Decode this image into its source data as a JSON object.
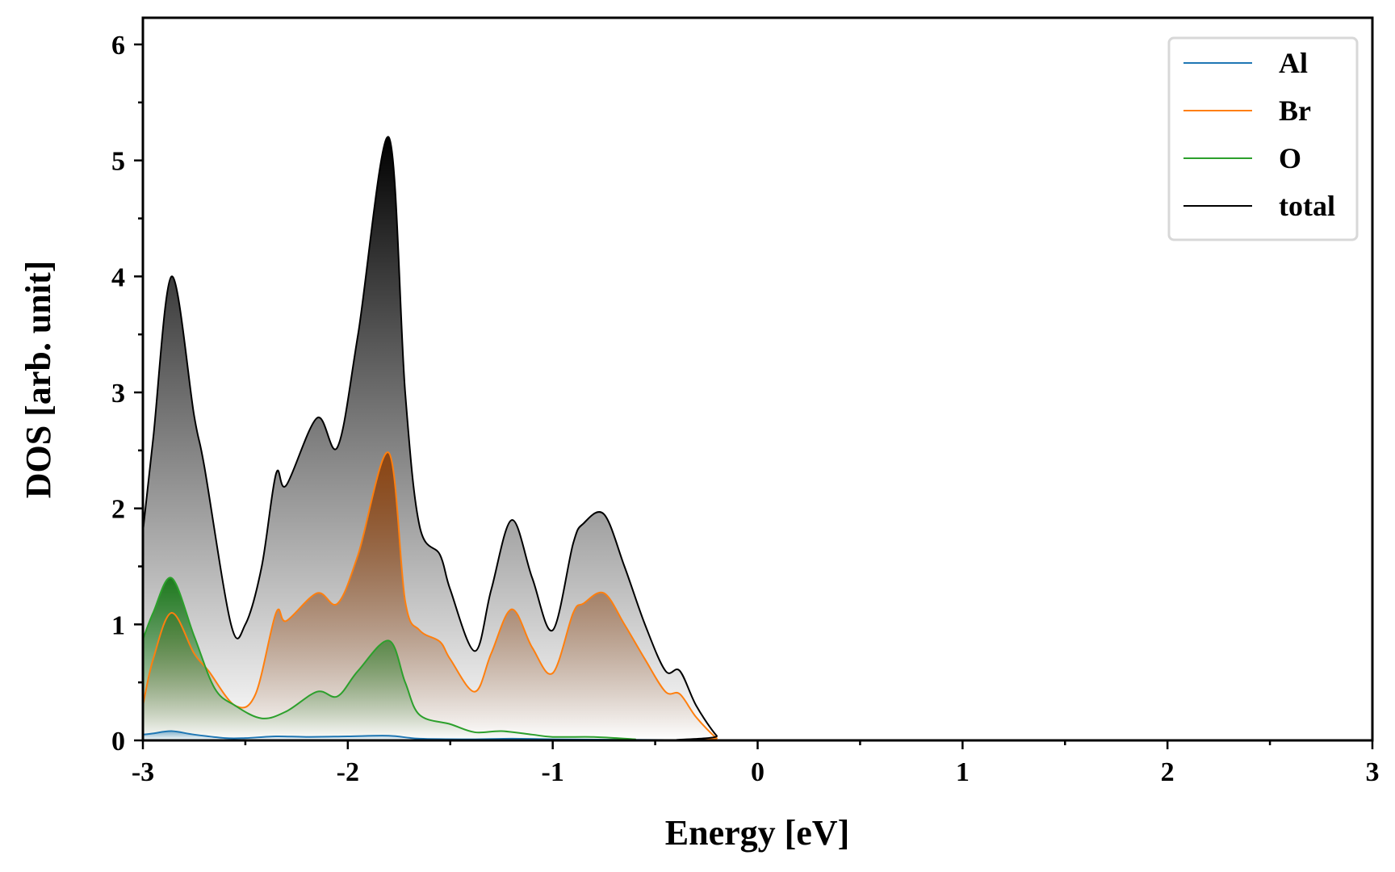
{
  "chart_data": {
    "type": "area",
    "title": "",
    "xlabel": "Energy [eV]",
    "ylabel": "DOS [arb. unit]",
    "xlim": [
      -3,
      3
    ],
    "ylim": [
      0,
      6.23
    ],
    "xticks": [
      -3,
      -2,
      -1,
      0,
      1,
      2,
      3
    ],
    "yticks": [
      0,
      1,
      2,
      3,
      4,
      5,
      6
    ],
    "grid": false,
    "legend_position": "top-right",
    "series": [
      {
        "name": "Al",
        "color": "#1f77b4",
        "fill": "#1f77b4",
        "x": [
          -3,
          -2.95,
          -2.86,
          -2.75,
          -2.6,
          -2.5,
          -2.35,
          -2.2,
          -2.0,
          -1.8,
          -1.65,
          -1.4,
          -1.2,
          -1.0,
          -0.6,
          -0.3,
          -0.15,
          3
        ],
        "y": [
          0.05,
          0.06,
          0.08,
          0.05,
          0.02,
          0.02,
          0.035,
          0.03,
          0.035,
          0.04,
          0.015,
          0.01,
          0.015,
          0.01,
          0.005,
          0.002,
          0,
          0
        ]
      },
      {
        "name": "Br",
        "color": "#ff7f0e",
        "fill": "#8b4513",
        "x": [
          -3,
          -2.95,
          -2.86,
          -2.75,
          -2.68,
          -2.55,
          -2.45,
          -2.35,
          -2.3,
          -2.15,
          -2.05,
          -1.95,
          -1.8,
          -1.72,
          -1.65,
          -1.55,
          -1.5,
          -1.38,
          -1.3,
          -1.2,
          -1.1,
          -1.0,
          -0.9,
          -0.85,
          -0.75,
          -0.65,
          -0.55,
          -0.45,
          -0.38,
          -0.3,
          -0.2,
          -0.15,
          3
        ],
        "y": [
          0.3,
          0.7,
          1.1,
          0.75,
          0.6,
          0.3,
          0.4,
          1.1,
          1.03,
          1.27,
          1.18,
          1.6,
          2.48,
          1.2,
          0.95,
          0.85,
          0.7,
          0.42,
          0.75,
          1.13,
          0.8,
          0.58,
          1.1,
          1.18,
          1.27,
          1.0,
          0.7,
          0.42,
          0.4,
          0.2,
          0.02,
          0,
          0
        ]
      },
      {
        "name": "O",
        "color": "#2ca02c",
        "fill": "#1e7a1e",
        "x": [
          -3,
          -2.95,
          -2.86,
          -2.75,
          -2.65,
          -2.55,
          -2.42,
          -2.3,
          -2.15,
          -2.05,
          -1.95,
          -1.8,
          -1.72,
          -1.65,
          -1.5,
          -1.38,
          -1.25,
          -1.1,
          -1.0,
          -0.8,
          -0.6,
          -0.5,
          3
        ],
        "y": [
          0.87,
          1.1,
          1.4,
          0.9,
          0.45,
          0.3,
          0.19,
          0.25,
          0.42,
          0.38,
          0.6,
          0.86,
          0.5,
          0.22,
          0.14,
          0.07,
          0.08,
          0.05,
          0.03,
          0.03,
          0.01,
          0,
          0
        ]
      },
      {
        "name": "total",
        "color": "#000000",
        "fill": "#000000",
        "x": [
          -3,
          -2.95,
          -2.86,
          -2.75,
          -2.7,
          -2.57,
          -2.5,
          -2.42,
          -2.35,
          -2.3,
          -2.15,
          -2.05,
          -1.95,
          -1.8,
          -1.72,
          -1.65,
          -1.55,
          -1.5,
          -1.38,
          -1.3,
          -1.2,
          -1.1,
          -1.0,
          -0.9,
          -0.85,
          -0.75,
          -0.65,
          -0.55,
          -0.45,
          -0.38,
          -0.3,
          -0.2,
          -0.15,
          3
        ],
        "y": [
          1.8,
          2.6,
          4.0,
          2.8,
          2.36,
          1.0,
          1.0,
          1.5,
          2.3,
          2.2,
          2.78,
          2.53,
          3.5,
          5.2,
          3.0,
          1.85,
          1.6,
          1.3,
          0.77,
          1.3,
          1.9,
          1.4,
          0.95,
          1.7,
          1.87,
          1.95,
          1.5,
          1.0,
          0.6,
          0.6,
          0.3,
          0.04,
          0,
          0
        ]
      }
    ]
  }
}
